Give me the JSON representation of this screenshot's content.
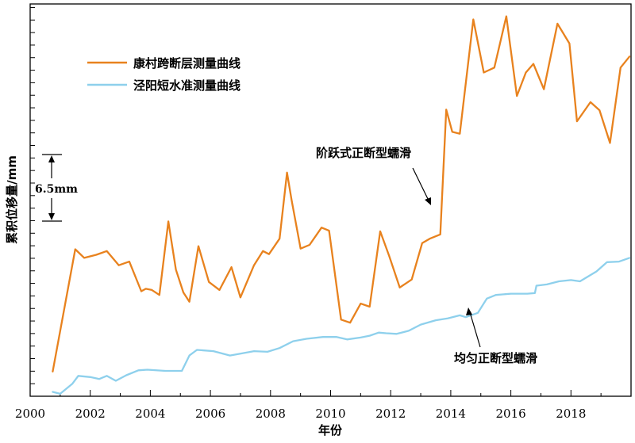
{
  "chart_data": {
    "type": "line",
    "xlabel": "年份",
    "ylabel": "累积位移量/mm",
    "xlim": [
      2000,
      2020
    ],
    "xticks": [
      2000,
      2002,
      2004,
      2006,
      2008,
      2010,
      2012,
      2014,
      2016,
      2018
    ],
    "ylim": [
      0,
      63.5
    ],
    "y_minor_tick_step": 2.03,
    "grid": false,
    "legend_position": "top-left",
    "colors": {
      "orange": "#E8821E",
      "blue": "#8ED0EC",
      "frame": "#000000"
    },
    "scale_bar": {
      "label": "6.5mm",
      "value": 6.5
    },
    "annotations": [
      {
        "text": "阶跃式正断型蠕滑",
        "series": "康村跨断层测量曲线",
        "points_to": [
          2013.55,
          29.5
        ]
      },
      {
        "text": "均匀正断型蠕滑",
        "series": "泾阳短水准测量曲线",
        "points_to": [
          2014.65,
          13.0
        ]
      }
    ],
    "series": [
      {
        "name": "康村跨断层测量曲线",
        "color": "#E8821E",
        "points": [
          [
            2000.75,
            4.0
          ],
          [
            2001.5,
            23.8
          ],
          [
            2001.8,
            22.4
          ],
          [
            2002.2,
            22.9
          ],
          [
            2002.55,
            23.5
          ],
          [
            2002.95,
            21.2
          ],
          [
            2003.3,
            21.8
          ],
          [
            2003.7,
            17.0
          ],
          [
            2003.85,
            17.4
          ],
          [
            2004.05,
            17.2
          ],
          [
            2004.3,
            16.4
          ],
          [
            2004.6,
            28.3
          ],
          [
            2004.85,
            20.5
          ],
          [
            2005.1,
            16.8
          ],
          [
            2005.3,
            15.3
          ],
          [
            2005.6,
            24.3
          ],
          [
            2005.95,
            18.5
          ],
          [
            2006.3,
            17.2
          ],
          [
            2006.7,
            20.9
          ],
          [
            2007.0,
            16.0
          ],
          [
            2007.45,
            21.2
          ],
          [
            2007.75,
            23.5
          ],
          [
            2007.95,
            23.0
          ],
          [
            2008.3,
            25.5
          ],
          [
            2008.55,
            36.2
          ],
          [
            2008.7,
            31.8
          ],
          [
            2009.0,
            23.9
          ],
          [
            2009.3,
            24.5
          ],
          [
            2009.7,
            27.3
          ],
          [
            2009.95,
            26.8
          ],
          [
            2010.35,
            12.4
          ],
          [
            2010.65,
            11.9
          ],
          [
            2011.0,
            15.0
          ],
          [
            2011.3,
            14.5
          ],
          [
            2011.65,
            26.7
          ],
          [
            2011.95,
            22.7
          ],
          [
            2012.3,
            17.6
          ],
          [
            2012.7,
            18.9
          ],
          [
            2013.05,
            24.8
          ],
          [
            2013.3,
            25.5
          ],
          [
            2013.65,
            26.2
          ],
          [
            2013.85,
            46.4
          ],
          [
            2014.05,
            42.8
          ],
          [
            2014.3,
            42.5
          ],
          [
            2014.75,
            61.0
          ],
          [
            2015.1,
            52.4
          ],
          [
            2015.45,
            53.2
          ],
          [
            2015.85,
            61.5
          ],
          [
            2016.2,
            48.6
          ],
          [
            2016.5,
            52.4
          ],
          [
            2016.75,
            53.8
          ],
          [
            2017.1,
            49.7
          ],
          [
            2017.55,
            60.3
          ],
          [
            2017.95,
            57.1
          ],
          [
            2018.2,
            44.5
          ],
          [
            2018.65,
            47.6
          ],
          [
            2018.95,
            46.3
          ],
          [
            2019.3,
            41.0
          ],
          [
            2019.65,
            53.2
          ],
          [
            2019.95,
            55.0
          ]
        ]
      },
      {
        "name": "泾阳短水准测量曲线",
        "color": "#8ED0EC",
        "points": [
          [
            2000.75,
            0.7
          ],
          [
            2001.0,
            0.4
          ],
          [
            2001.4,
            2.0
          ],
          [
            2001.6,
            3.3
          ],
          [
            2002.0,
            3.1
          ],
          [
            2002.3,
            2.8
          ],
          [
            2002.55,
            3.3
          ],
          [
            2002.85,
            2.5
          ],
          [
            2003.2,
            3.4
          ],
          [
            2003.6,
            4.2
          ],
          [
            2003.9,
            4.3
          ],
          [
            2004.5,
            4.1
          ],
          [
            2005.05,
            4.1
          ],
          [
            2005.3,
            6.6
          ],
          [
            2005.55,
            7.5
          ],
          [
            2006.1,
            7.3
          ],
          [
            2006.65,
            6.6
          ],
          [
            2007.0,
            6.9
          ],
          [
            2007.45,
            7.3
          ],
          [
            2007.9,
            7.2
          ],
          [
            2008.3,
            7.8
          ],
          [
            2008.75,
            8.9
          ],
          [
            2009.2,
            9.3
          ],
          [
            2009.75,
            9.6
          ],
          [
            2010.2,
            9.6
          ],
          [
            2010.55,
            9.2
          ],
          [
            2011.0,
            9.5
          ],
          [
            2011.3,
            9.8
          ],
          [
            2011.6,
            10.3
          ],
          [
            2011.85,
            10.2
          ],
          [
            2012.2,
            10.1
          ],
          [
            2012.6,
            10.6
          ],
          [
            2013.0,
            11.6
          ],
          [
            2013.5,
            12.3
          ],
          [
            2013.9,
            12.6
          ],
          [
            2014.3,
            13.1
          ],
          [
            2014.5,
            12.8
          ],
          [
            2014.9,
            13.5
          ],
          [
            2015.2,
            15.8
          ],
          [
            2015.5,
            16.4
          ],
          [
            2016.0,
            16.6
          ],
          [
            2016.55,
            16.6
          ],
          [
            2016.8,
            16.7
          ],
          [
            2016.85,
            17.9
          ],
          [
            2017.2,
            18.1
          ],
          [
            2017.6,
            18.6
          ],
          [
            2018.0,
            18.8
          ],
          [
            2018.3,
            18.6
          ],
          [
            2018.85,
            20.2
          ],
          [
            2019.2,
            21.7
          ],
          [
            2019.6,
            21.8
          ],
          [
            2019.95,
            22.4
          ]
        ]
      }
    ]
  }
}
